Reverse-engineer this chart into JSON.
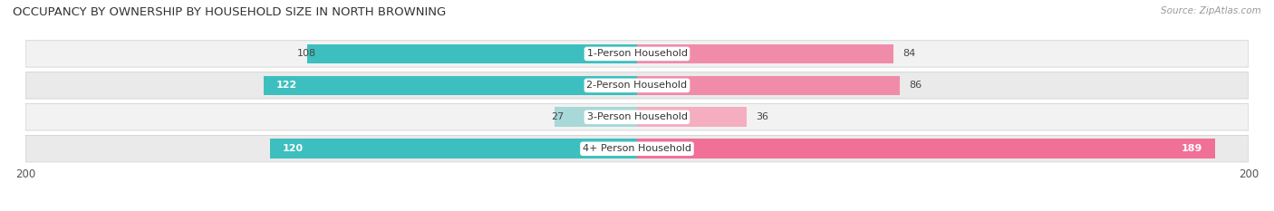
{
  "title": "OCCUPANCY BY OWNERSHIP BY HOUSEHOLD SIZE IN NORTH BROWNING",
  "source": "Source: ZipAtlas.com",
  "categories": [
    "1-Person Household",
    "2-Person Household",
    "3-Person Household",
    "4+ Person Household"
  ],
  "owner_values": [
    108,
    122,
    27,
    120
  ],
  "renter_values": [
    84,
    86,
    36,
    189
  ],
  "owner_colors": [
    "#3dbfbf",
    "#3dbfbf",
    "#a8d8d8",
    "#3dbfbf"
  ],
  "renter_colors": [
    "#f08caa",
    "#f08caa",
    "#f5adc0",
    "#f07098"
  ],
  "owner_label_inside": [
    false,
    true,
    false,
    true
  ],
  "renter_label_inside": [
    false,
    false,
    false,
    true
  ],
  "axis_max": 200,
  "title_fontsize": 9.5,
  "source_fontsize": 7.5,
  "label_fontsize": 8,
  "tick_fontsize": 8.5,
  "legend_fontsize": 8,
  "bar_height": 0.62,
  "row_bg_colors": [
    "#f0f0f0",
    "#e8e8e8",
    "#f0f0f0",
    "#e8e8e8"
  ],
  "row_bg_light": "#f8f8f8"
}
